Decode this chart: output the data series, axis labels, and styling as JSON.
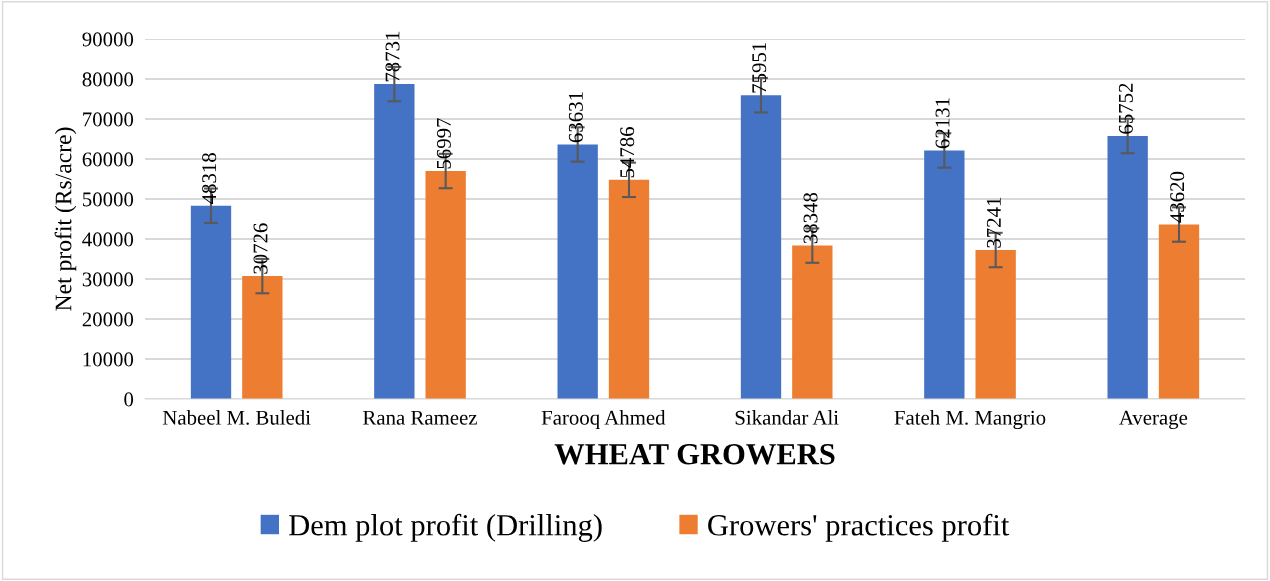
{
  "chart_data": {
    "type": "bar",
    "xlabel": "WHEAT GROWERS",
    "ylabel": "Net profit (Rs/acre)",
    "categories": [
      "Nabeel M. Buledi",
      "Rana Rameez",
      "Farooq Ahmed",
      "Sikandar Ali",
      "Fateh M. Mangrio",
      "Average"
    ],
    "series": [
      {
        "name": "Dem plot profit (Drilling)",
        "color": "#4472c4",
        "values": [
          48318,
          78731,
          63631,
          75951,
          62131,
          65752
        ],
        "errors": [
          4300,
          4300,
          4300,
          4300,
          4300,
          4300
        ]
      },
      {
        "name": "Growers' practices profit",
        "color": "#ed7d31",
        "values": [
          30726,
          56997,
          54786,
          38348,
          37241,
          43620
        ],
        "errors": [
          4300,
          4300,
          4300,
          4300,
          4300,
          4300
        ]
      }
    ],
    "ylim": [
      0,
      90000
    ],
    "yticks": [
      0,
      10000,
      20000,
      30000,
      40000,
      50000,
      60000,
      70000,
      80000,
      90000
    ],
    "grid": "y",
    "legend": "bottom",
    "data_labels": true
  }
}
